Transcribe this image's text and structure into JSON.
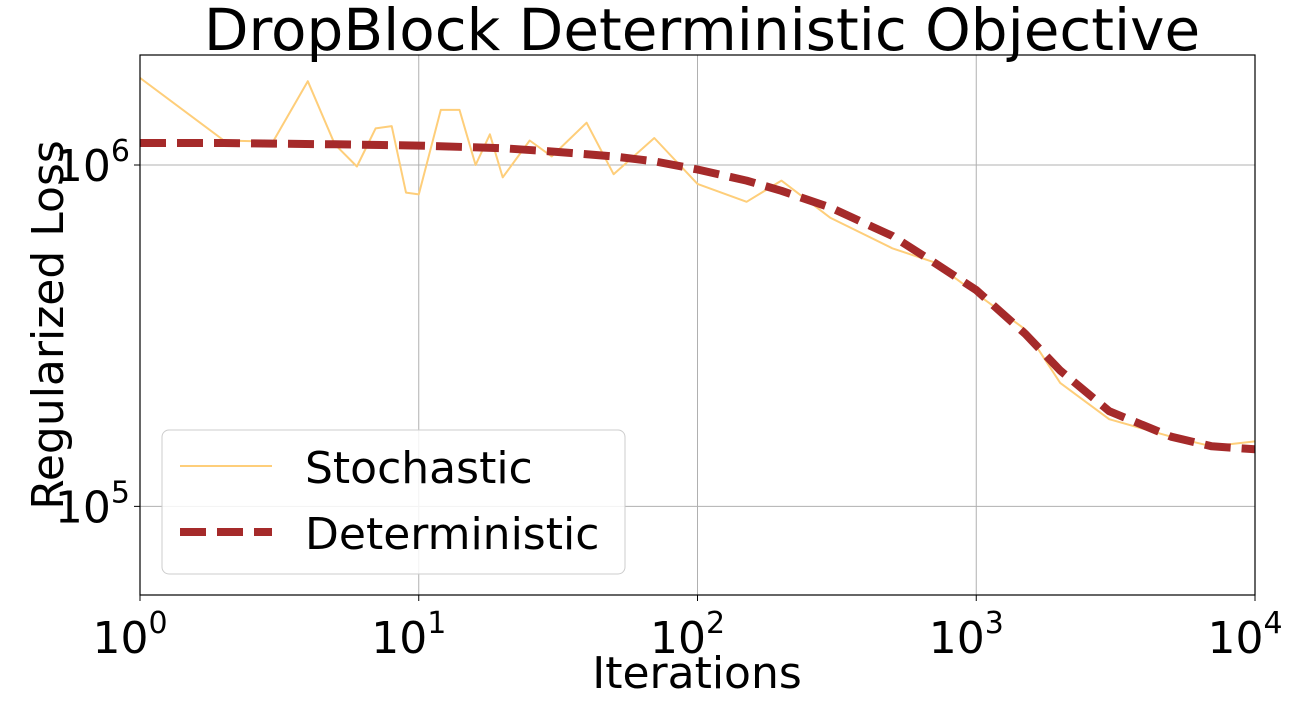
{
  "chart_data": {
    "type": "line",
    "title": "DropBlock Deterministic Objective",
    "xlabel": "Iterations",
    "ylabel": "Regularized Loss",
    "xscale": "log",
    "yscale": "log",
    "xlim": [
      1,
      10000
    ],
    "ylim": [
      55000,
      2100000
    ],
    "grid": true,
    "legend_position": "lower-left",
    "x_ticks": [
      {
        "base": "10",
        "exp": "0"
      },
      {
        "base": "10",
        "exp": "1"
      },
      {
        "base": "10",
        "exp": "2"
      },
      {
        "base": "10",
        "exp": "3"
      },
      {
        "base": "10",
        "exp": "4"
      }
    ],
    "y_ticks": [
      {
        "base": "10",
        "exp": "5"
      },
      {
        "base": "10",
        "exp": "6"
      }
    ],
    "series": [
      {
        "name": "Stochastic",
        "color": "#FECE7A",
        "style": "solid",
        "x": [
          1,
          2,
          3,
          4,
          5,
          6,
          7,
          8,
          9,
          10,
          12,
          14,
          16,
          18,
          20,
          25,
          30,
          40,
          50,
          70,
          100,
          150,
          200,
          300,
          500,
          700,
          1000,
          1500,
          2000,
          3000,
          5000,
          7000,
          10000
        ],
        "y": [
          1800000,
          1180000,
          1170000,
          1760000,
          1150000,
          990000,
          1280000,
          1300000,
          830000,
          820000,
          1450000,
          1450000,
          1000000,
          1230000,
          920000,
          1180000,
          1060000,
          1330000,
          940000,
          1200000,
          880000,
          780000,
          900000,
          700000,
          570000,
          520000,
          420000,
          330000,
          230000,
          180000,
          160000,
          150000,
          155000
        ]
      },
      {
        "name": "Deterministic",
        "color": "#A52A2A",
        "style": "dashed",
        "x": [
          1,
          2,
          3,
          5,
          10,
          20,
          30,
          50,
          70,
          100,
          150,
          200,
          300,
          500,
          700,
          1000,
          1500,
          2000,
          3000,
          5000,
          7000,
          10000
        ],
        "y": [
          1160000,
          1160000,
          1155000,
          1150000,
          1140000,
          1120000,
          1095000,
          1060000,
          1025000,
          970000,
          900000,
          840000,
          750000,
          620000,
          520000,
          430000,
          320000,
          250000,
          190000,
          160000,
          150000,
          147000
        ]
      }
    ]
  }
}
